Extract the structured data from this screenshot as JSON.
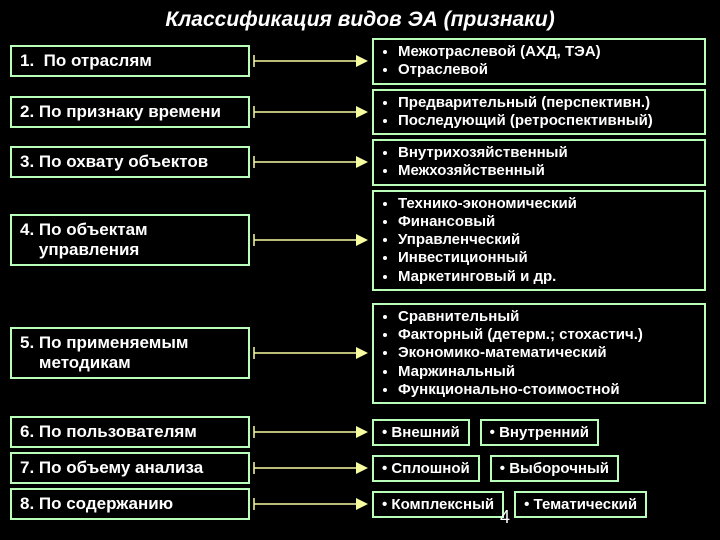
{
  "title": "Классификация видов ЭА (признаки)",
  "colors": {
    "bg": "#000000",
    "border": "#b9ffb9",
    "text": "#ffffff",
    "arrow": "#f8fca0"
  },
  "arrow_style": {
    "stroke_width": 1.5,
    "head_size": 9
  },
  "left_font": {
    "size_pt": 13,
    "weight": "bold"
  },
  "right_font": {
    "size_pt": 11,
    "weight": "bold"
  },
  "rows": [
    {
      "label": "1.  По отраслям",
      "right": [
        "Межотраслевой (АХД, ТЭА)",
        "Отраслевой"
      ]
    },
    {
      "label": "2. По признаку времени",
      "right": [
        "Предварительный (перспективн.)",
        "Последующий  (ретроспективный)"
      ]
    },
    {
      "label": "3. По охвату объектов",
      "right": [
        "Внутрихозяйственный",
        "Межхозяйственный"
      ]
    },
    {
      "label": "4. По объектам\n    управления",
      "right": [
        "Технико-экономический",
        "Финансовый",
        "Управленческий",
        "Инвестиционный",
        "Маркетинговый и др."
      ],
      "gap_after": true
    },
    {
      "label": "5. По применяемым\n    методикам",
      "right": [
        "Сравнительный",
        "Факторный (детерм.; стохастич.)",
        "Экономико-математический",
        "Маржинальный",
        "Функционально-стоимостной"
      ],
      "gap_after": true
    },
    {
      "label": "6. По пользователям",
      "inline": [
        "Внешний",
        "Внутренний"
      ]
    },
    {
      "label": "7. По объему анализа",
      "inline": [
        "Сплошной",
        "Выборочный"
      ]
    },
    {
      "label": "8. По содержанию",
      "inline": [
        "Комплексный",
        "Тематический"
      ]
    }
  ],
  "footer_num": "4"
}
